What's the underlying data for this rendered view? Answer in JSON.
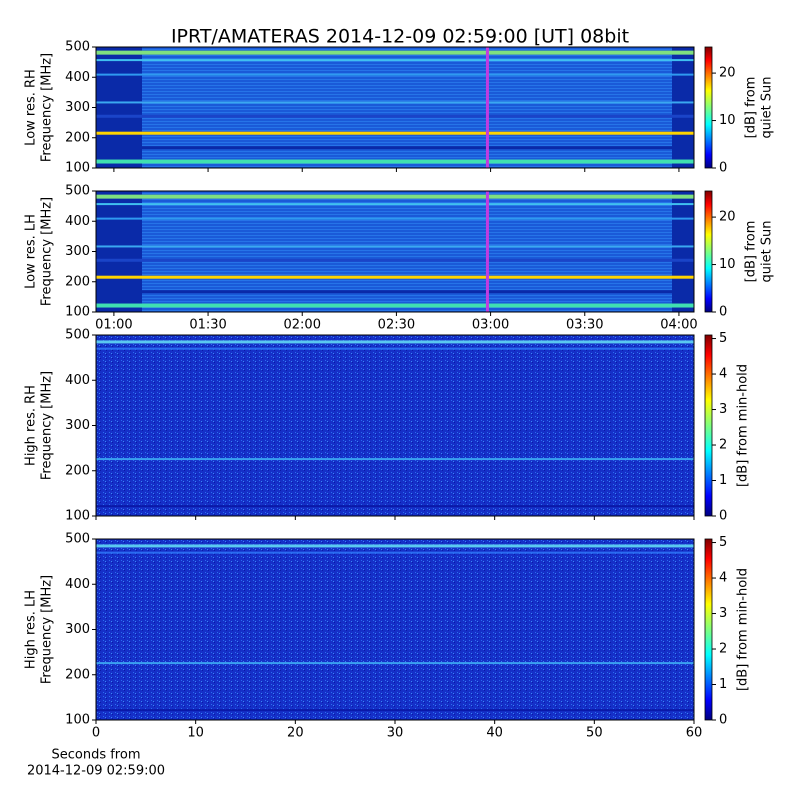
{
  "chart_data": [
    {
      "type": "heatmap",
      "title": "IPRT/AMATERAS 2014-12-09 02:59:00 [UT]   08bit",
      "ylabel": [
        "Low res. RH",
        "Frequency [MHz]"
      ],
      "xlim": [
        54.3,
        244.8
      ],
      "xticks": [
        60,
        90,
        120,
        150,
        180,
        210,
        240
      ],
      "ylim": [
        100,
        500
      ],
      "yticks": [
        100,
        200,
        300,
        400,
        500
      ],
      "marker_x": 179,
      "marker_color": "#c03ce0",
      "clim": [
        0,
        25.5
      ],
      "cticks": [
        0,
        10,
        20
      ],
      "clabel": [
        "[dB] from",
        "quiet Sun"
      ],
      "style": "low"
    },
    {
      "type": "heatmap",
      "ylabel": [
        "Low res. LH",
        "Frequency [MHz]"
      ],
      "xlim": [
        54.3,
        244.8
      ],
      "xticks": [
        {
          "value": 60,
          "label": "01:00"
        },
        {
          "value": 90,
          "label": "01:30"
        },
        {
          "value": 120,
          "label": "02:00"
        },
        {
          "value": 150,
          "label": "02:30"
        },
        {
          "value": 180,
          "label": "03:00"
        },
        {
          "value": 210,
          "label": "03:30"
        },
        {
          "value": 240,
          "label": "04:00"
        }
      ],
      "ylim": [
        100,
        500
      ],
      "yticks": [
        100,
        200,
        300,
        400,
        500
      ],
      "marker_x": 179,
      "marker_color": "#c03ce0",
      "clim": [
        0,
        25.5
      ],
      "cticks": [
        0,
        10,
        20
      ],
      "clabel": [
        "[dB] from",
        "quiet Sun"
      ],
      "style": "low"
    },
    {
      "type": "heatmap",
      "ylabel": [
        "High res. RH",
        "Frequency [MHz]"
      ],
      "xlim": [
        0,
        60
      ],
      "xticks": [
        0,
        10,
        20,
        30,
        40,
        50,
        60
      ],
      "ylim": [
        100,
        500
      ],
      "yticks": [
        100,
        200,
        300,
        400,
        500
      ],
      "clim": [
        0,
        5.1
      ],
      "cticks": [
        0,
        1,
        2,
        3,
        4,
        5
      ],
      "clabel": [
        "[dB] from min-hold"
      ],
      "style": "high"
    },
    {
      "type": "heatmap",
      "ylabel": [
        "High res. LH",
        "Frequency [MHz]"
      ],
      "xlim": [
        0,
        60
      ],
      "xticks": [
        0,
        10,
        20,
        30,
        40,
        50,
        60
      ],
      "xlabel": [
        "Seconds from",
        "2014-12-09 02:59:00"
      ],
      "ylim": [
        100,
        500
      ],
      "yticks": [
        100,
        200,
        300,
        400,
        500
      ],
      "clim": [
        0,
        5.1
      ],
      "cticks": [
        0,
        1,
        2,
        3,
        4,
        5
      ],
      "clabel": [
        "[dB] from min-hold"
      ],
      "style": "high"
    }
  ]
}
